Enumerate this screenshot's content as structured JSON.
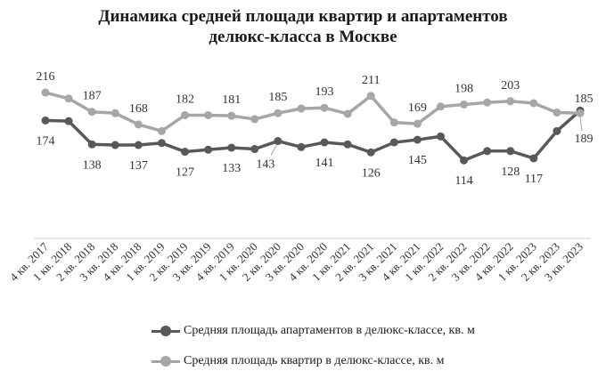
{
  "chart_data": {
    "type": "line",
    "title": [
      "Динамика средней площади квартир и апартаментов",
      "делюкс-класса в Москве"
    ],
    "categories": [
      "4 кв. 2017",
      "1 кв. 2018",
      "2 кв. 2018",
      "3 кв. 2018",
      "4 кв. 2018",
      "1 кв. 2019",
      "2 кв. 2019",
      "3 кв. 2019",
      "4 кв. 2019",
      "1 кв. 2020",
      "2 кв. 2020",
      "3 кв. 2020",
      "4 кв. 2020",
      "1 кв. 2021",
      "2 кв. 2021",
      "3 кв. 2021",
      "4 кв. 2021",
      "1 кв. 2022",
      "2 кв. 2022",
      "3 кв. 2022",
      "4 кв. 2022",
      "1 кв. 2023",
      "2 кв. 2023",
      "3 кв. 2023"
    ],
    "series": [
      {
        "name": "Средняя площадь апартаментов в делюкс-классе, кв. м",
        "color": "#595959",
        "values": [
          174,
          173,
          138,
          137,
          137,
          140,
          127,
          130,
          133,
          131,
          143,
          134,
          141,
          138,
          126,
          141,
          145,
          150,
          114,
          128,
          128,
          117,
          158,
          189
        ],
        "labels": [
          "174",
          null,
          "138",
          null,
          "137",
          null,
          "127",
          null,
          "133",
          null,
          "143",
          null,
          "141",
          null,
          "126",
          null,
          "145",
          null,
          "114",
          null,
          "128",
          "117",
          null,
          "189"
        ]
      },
      {
        "name": "Средняя площадь квартир в делюкс-классе, кв. м",
        "color": "#a6a6a6",
        "values": [
          216,
          207,
          187,
          185,
          168,
          158,
          182,
          182,
          181,
          176,
          185,
          192,
          193,
          184,
          211,
          171,
          169,
          195,
          198,
          201,
          203,
          200,
          186,
          185
        ],
        "labels": [
          "216",
          null,
          "187",
          null,
          "168",
          null,
          "182",
          null,
          "181",
          null,
          "185",
          null,
          "193",
          null,
          "211",
          null,
          "169",
          null,
          "198",
          null,
          "203",
          null,
          null,
          "185"
        ]
      }
    ],
    "legend_position": "bottom",
    "grid": false
  }
}
